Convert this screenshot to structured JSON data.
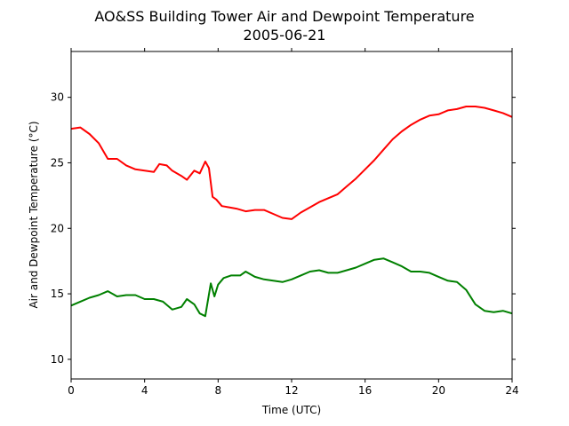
{
  "chart_data": {
    "type": "line",
    "title": "AO&SS Building Tower Air and Dewpoint Temperature",
    "subtitle": "2005-06-21",
    "xlabel": "Time (UTC)",
    "ylabel": "Air and Dewpoint Temperature (°C)",
    "xlim": [
      0,
      24
    ],
    "ylim": [
      8.5,
      33.5
    ],
    "xticks": [
      0,
      4,
      8,
      12,
      16,
      20,
      24
    ],
    "yticks": [
      10,
      15,
      20,
      25,
      30
    ],
    "grid": false,
    "legend": "none",
    "series": [
      {
        "color": "#ff0000",
        "x": [
          0,
          0.5,
          1,
          1.5,
          2,
          2.5,
          3,
          3.5,
          4,
          4.5,
          4.8,
          5.2,
          5.5,
          6,
          6.3,
          6.7,
          7,
          7.3,
          7.5,
          7.7,
          7.9,
          8.2,
          8.6,
          9,
          9.5,
          10,
          10.5,
          11,
          11.5,
          12,
          12.5,
          13,
          13.5,
          14,
          14.5,
          15,
          15.5,
          16,
          16.5,
          17,
          17.5,
          18,
          18.5,
          19,
          19.5,
          20,
          20.5,
          21,
          21.5,
          22,
          22.5,
          23,
          23.5,
          24
        ],
        "values": [
          27.6,
          27.7,
          27.2,
          26.5,
          25.3,
          25.3,
          24.8,
          24.5,
          24.4,
          24.3,
          24.9,
          24.8,
          24.4,
          24.0,
          23.7,
          24.4,
          24.2,
          25.1,
          24.6,
          22.4,
          22.2,
          21.7,
          21.6,
          21.5,
          21.3,
          21.4,
          21.4,
          21.1,
          20.8,
          20.7,
          21.2,
          21.6,
          22.0,
          22.3,
          22.6,
          23.2,
          23.8,
          24.5,
          25.2,
          26.0,
          26.8,
          27.4,
          27.9,
          28.3,
          28.6,
          28.7,
          29.0,
          29.1,
          29.3,
          29.3,
          29.2,
          29.0,
          28.8,
          28.5
        ]
      },
      {
        "color": "#008000",
        "x": [
          0,
          0.5,
          1,
          1.5,
          2,
          2.5,
          3,
          3.5,
          4,
          4.5,
          5,
          5.5,
          6,
          6.3,
          6.7,
          7,
          7.3,
          7.6,
          7.8,
          8.0,
          8.3,
          8.7,
          9.2,
          9.5,
          10,
          10.5,
          11,
          11.5,
          12,
          12.5,
          13,
          13.5,
          14,
          14.5,
          15,
          15.5,
          16,
          16.5,
          17,
          17.5,
          18,
          18.5,
          19,
          19.5,
          20,
          20.5,
          21,
          21.5,
          22,
          22.5,
          23,
          23.5,
          24
        ],
        "values": [
          14.1,
          14.4,
          14.7,
          14.9,
          15.2,
          14.8,
          14.9,
          14.9,
          14.6,
          14.6,
          14.4,
          13.8,
          14.0,
          14.6,
          14.2,
          13.5,
          13.3,
          15.8,
          14.8,
          15.7,
          16.2,
          16.4,
          16.4,
          16.7,
          16.3,
          16.1,
          16.0,
          15.9,
          16.1,
          16.4,
          16.7,
          16.8,
          16.6,
          16.6,
          16.8,
          17.0,
          17.3,
          17.6,
          17.7,
          17.4,
          17.1,
          16.7,
          16.7,
          16.6,
          16.3,
          16.0,
          15.9,
          15.3,
          14.2,
          13.7,
          13.6,
          13.7,
          13.5
        ]
      }
    ]
  }
}
